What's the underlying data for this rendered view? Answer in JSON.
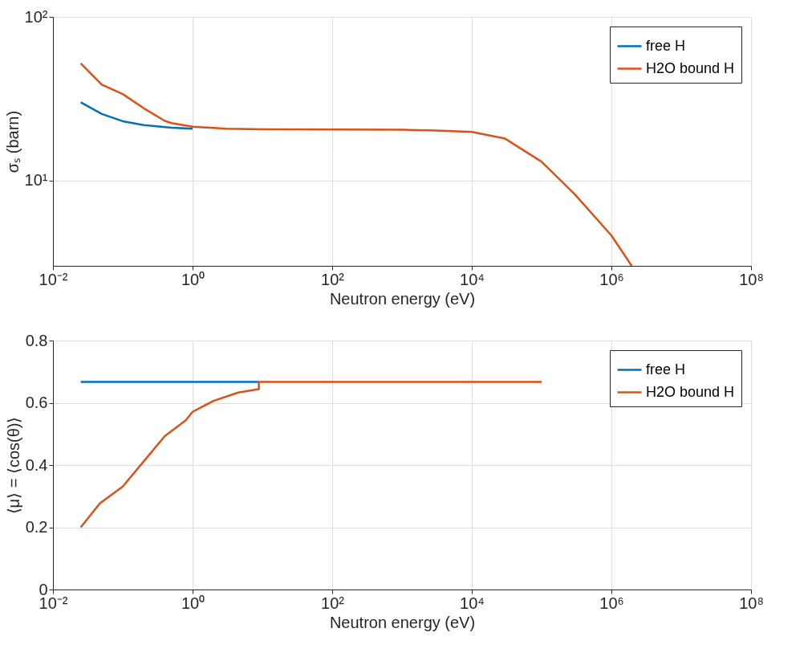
{
  "chart_data": [
    {
      "type": "line",
      "xlabel": "Neutron energy (eV)",
      "ylabel": "σₛ (barn)",
      "log": "xy",
      "grid": true,
      "legend": "top right",
      "line_style": "solid",
      "xlim": [
        0.01,
        100000000
      ],
      "xticks": [
        {
          "value": 0.01,
          "label": "10⁻²"
        },
        {
          "value": 1,
          "label": "10⁰"
        },
        {
          "value": 100,
          "label": "10²"
        },
        {
          "value": 10000,
          "label": "10⁴"
        },
        {
          "value": 1000000,
          "label": "10⁶"
        },
        {
          "value": 100000000,
          "label": "10⁸"
        }
      ],
      "ylim": [
        3,
        100
      ],
      "yticks": [
        {
          "value": 10,
          "label": "10¹"
        },
        {
          "value": 100,
          "label": "10²"
        }
      ],
      "series": [
        {
          "name": "free H",
          "color": "#0072bd",
          "x": [
            0.025,
            0.05,
            0.1,
            0.2,
            0.5,
            1
          ],
          "values": [
            30,
            25.5,
            23,
            21.8,
            21,
            20.7
          ]
        },
        {
          "name": "H2O bound H",
          "color": "#d95319",
          "x": [
            0.025,
            0.05,
            0.1,
            0.2,
            0.4,
            0.5,
            1,
            3,
            10,
            1000,
            3000,
            10000,
            30000,
            100000,
            300000,
            1000000,
            1950000
          ],
          "values": [
            52,
            38.5,
            33.7,
            27.6,
            23.1,
            22.4,
            21.3,
            20.7,
            20.5,
            20.4,
            20.2,
            19.8,
            18,
            13,
            8.2,
            4.6,
            3.0
          ]
        }
      ]
    },
    {
      "type": "line",
      "xlabel": "Neutron energy (eV)",
      "ylabel": "⟨μ⟩ = ⟨cos(θ)⟩",
      "log": "x",
      "grid": true,
      "legend": "top right",
      "line_style": "solid",
      "xlim": [
        0.01,
        100000000
      ],
      "xticks": [
        {
          "value": 0.01,
          "label": "10⁻²"
        },
        {
          "value": 1,
          "label": "10⁰"
        },
        {
          "value": 100,
          "label": "10²"
        },
        {
          "value": 10000,
          "label": "10⁴"
        },
        {
          "value": 1000000,
          "label": "10⁶"
        },
        {
          "value": 100000000,
          "label": "10⁸"
        }
      ],
      "ylim": [
        0,
        0.8
      ],
      "yticks": [
        0,
        0.2,
        0.4,
        0.6,
        0.8
      ],
      "series": [
        {
          "name": "free H",
          "color": "#0072bd",
          "x": [
            0.025,
            8.9
          ],
          "values": [
            0.667,
            0.667
          ]
        },
        {
          "name": "H2O bound H",
          "color": "#d95319",
          "x": [
            0.025,
            0.047,
            0.1,
            0.2,
            0.4,
            0.8,
            1,
            2,
            4.5,
            8.9,
            8.9,
            100000
          ],
          "values": [
            0.2,
            0.277,
            0.331,
            0.412,
            0.493,
            0.544,
            0.571,
            0.606,
            0.633,
            0.644,
            0.667,
            0.667
          ]
        }
      ]
    }
  ]
}
